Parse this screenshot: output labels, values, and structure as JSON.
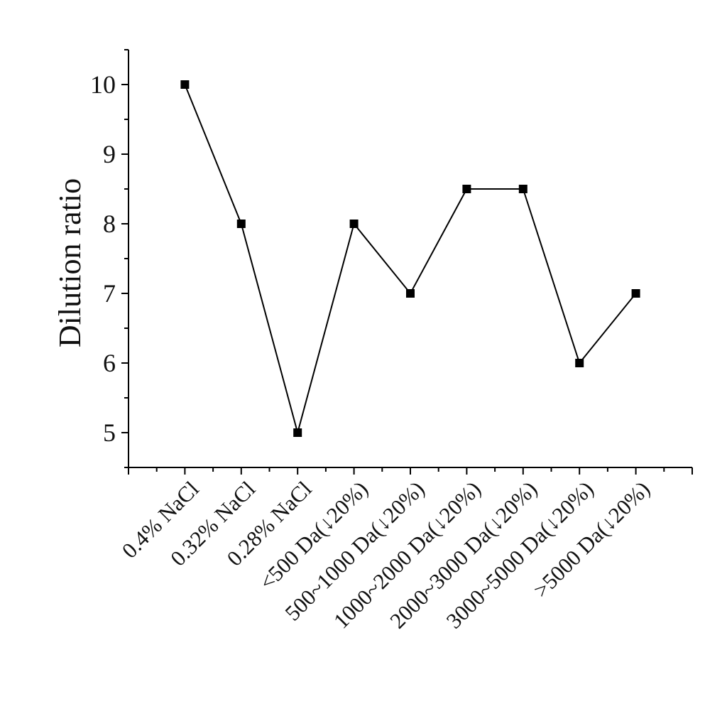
{
  "chart_data": {
    "type": "line",
    "title": "",
    "xlabel": "",
    "ylabel": "Dilution ratio",
    "categories": [
      "0.4% NaCl",
      "0.32% NaCl",
      "0.28% NaCl",
      "<500 Da(↓20%)",
      "500~1000 Da(↓20%)",
      "1000~2000 Da(↓20%)",
      "2000~3000 Da(↓20%)",
      "3000~5000 Da(↓20%)",
      ">5000 Da(↓20%)"
    ],
    "series": [
      {
        "values": [
          10,
          8,
          5,
          8,
          7,
          8.5,
          8.5,
          6,
          7
        ],
        "marker": "square",
        "color": "#000000"
      }
    ],
    "yticks": [
      5,
      6,
      7,
      8,
      9,
      10
    ],
    "ylim": [
      4.5,
      10.5
    ],
    "xlim": [
      0,
      10
    ],
    "grid": false,
    "legend": "none"
  }
}
